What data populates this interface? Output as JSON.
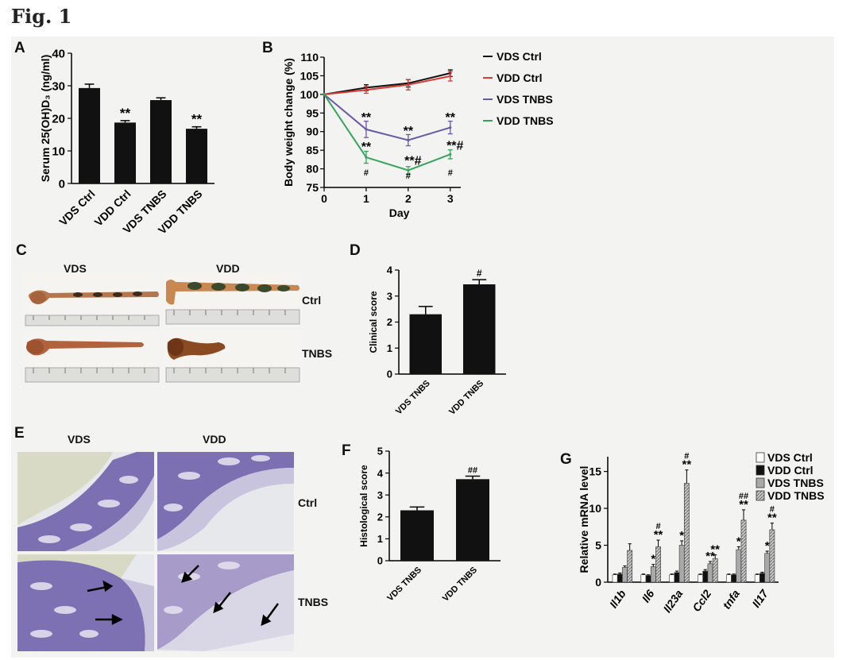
{
  "figure": {
    "title": "Fig. 1"
  },
  "panels": {
    "A": {
      "label": "A"
    },
    "B": {
      "label": "B"
    },
    "C": {
      "label": "C",
      "col_labels": [
        "VDS",
        "VDD"
      ],
      "row_labels": [
        "Ctrl",
        "TNBS"
      ]
    },
    "D": {
      "label": "D"
    },
    "E": {
      "label": "E",
      "col_labels": [
        "VDS",
        "VDD"
      ],
      "row_labels": [
        "Ctrl",
        "TNBS"
      ]
    },
    "F": {
      "label": "F"
    },
    "G": {
      "label": "G"
    }
  },
  "chart_data": [
    {
      "panel": "A",
      "type": "bar",
      "categories": [
        "VDS Ctrl",
        "VDD Ctrl",
        "VDS TNBS",
        "VDD TNBS"
      ],
      "values": [
        29.3,
        18.7,
        25.6,
        16.8
      ],
      "errors": [
        1.2,
        0.6,
        0.7,
        0.6
      ],
      "annotations": [
        "",
        "**",
        "",
        "**"
      ],
      "ylabel": "Serum 25(OH)D₃ (ng/ml)",
      "ylim": [
        0,
        40
      ],
      "yticks": [
        0,
        10,
        20,
        30,
        40
      ],
      "color": "#111111"
    },
    {
      "panel": "B",
      "type": "line",
      "x": [
        0,
        1,
        2,
        3
      ],
      "xlabel": "Day",
      "ylabel": "Body weight change (%)",
      "ylim": [
        75,
        110
      ],
      "yticks": [
        75,
        80,
        85,
        90,
        95,
        100,
        105,
        110
      ],
      "series": [
        {
          "name": "VDS Ctrl",
          "values": [
            100,
            101.8,
            103,
            105.7
          ],
          "errors": [
            0,
            0.8,
            1,
            0.9
          ],
          "color": "#111111"
        },
        {
          "name": "VDD Ctrl",
          "values": [
            100,
            101.2,
            102.6,
            104.9
          ],
          "errors": [
            0,
            0.9,
            1.4,
            1.3
          ],
          "color": "#d83a36"
        },
        {
          "name": "VDS TNBS",
          "values": [
            100,
            90.6,
            87.7,
            91.1
          ],
          "errors": [
            0,
            2.2,
            1.5,
            1.7
          ],
          "color": "#6a58a8"
        },
        {
          "name": "VDD TNBS",
          "values": [
            100,
            83.1,
            79.6,
            83.9
          ],
          "errors": [
            0,
            1.6,
            1.0,
            1.2
          ],
          "color": "#35a45c"
        }
      ],
      "annotations": [
        {
          "x": 1,
          "y": 94.2,
          "text": "**"
        },
        {
          "x": 2,
          "y": 90.6,
          "text": "**"
        },
        {
          "x": 3,
          "y": 94.2,
          "text": "**"
        },
        {
          "x": 1,
          "y": 86.3,
          "text": "**"
        },
        {
          "x": 2,
          "y": 82.6,
          "text": "**#"
        },
        {
          "x": 3,
          "y": 86.6,
          "text": "**#"
        },
        {
          "x": 1,
          "y": 79.1,
          "text": "#"
        },
        {
          "x": 2,
          "y": 78.2,
          "text": "#"
        },
        {
          "x": 3,
          "y": 79.1,
          "text": "#"
        }
      ]
    },
    {
      "panel": "D",
      "type": "bar",
      "categories": [
        "VDS TNBS",
        "VDD TNBS"
      ],
      "values": [
        2.3,
        3.45
      ],
      "errors": [
        0.3,
        0.18
      ],
      "annotations": [
        "",
        "#"
      ],
      "ylabel": "Clinical score",
      "ylim": [
        0,
        4
      ],
      "yticks": [
        0,
        1,
        2,
        3,
        4
      ],
      "color": "#111111"
    },
    {
      "panel": "F",
      "type": "bar",
      "categories": [
        "VDS TNBS",
        "VDD TNBS"
      ],
      "values": [
        2.3,
        3.72
      ],
      "errors": [
        0.15,
        0.14
      ],
      "annotations": [
        "",
        "##"
      ],
      "ylabel": "Histological score",
      "ylim": [
        0,
        5
      ],
      "yticks": [
        0,
        1,
        2,
        3,
        4,
        5
      ],
      "color": "#111111"
    },
    {
      "panel": "G",
      "type": "bar",
      "categories": [
        "Il1b",
        "Il6",
        "Il23a",
        "Ccl2",
        "tnfa",
        "Il17"
      ],
      "ylabel": "Relative mRNA level",
      "ylim": [
        0,
        17
      ],
      "yticks": [
        0,
        5,
        10,
        15
      ],
      "legend_position": "top-right",
      "series": [
        {
          "name": "VDS Ctrl",
          "values": [
            1.0,
            1.0,
            1.0,
            1.0,
            1.0,
            1.0
          ],
          "errors": [
            0.1,
            0.1,
            0.1,
            0.1,
            0.1,
            0.1
          ],
          "fill": "white"
        },
        {
          "name": "VDD Ctrl",
          "values": [
            1.1,
            0.9,
            1.3,
            1.5,
            1.0,
            1.2
          ],
          "errors": [
            0.15,
            0.1,
            0.2,
            0.2,
            0.1,
            0.15
          ],
          "fill": "black"
        },
        {
          "name": "VDS TNBS",
          "values": [
            2.0,
            2.1,
            5.0,
            2.5,
            4.4,
            3.9
          ],
          "errors": [
            0.2,
            0.3,
            0.6,
            0.3,
            0.4,
            0.3
          ],
          "fill": "gray"
        },
        {
          "name": "VDD TNBS",
          "values": [
            4.3,
            4.8,
            13.4,
            3.2,
            8.4,
            7.1
          ],
          "errors": [
            0.9,
            0.9,
            1.8,
            0.5,
            1.4,
            0.9
          ],
          "fill": "hatched"
        }
      ],
      "annotations": [
        {
          "category": 1,
          "series": 2,
          "text": "*"
        },
        {
          "category": 1,
          "series": 3,
          "text": "**"
        },
        {
          "category": 1,
          "series": 3,
          "text": "#"
        },
        {
          "category": 2,
          "series": 2,
          "text": "*"
        },
        {
          "category": 2,
          "series": 3,
          "text": "**"
        },
        {
          "category": 2,
          "series": 3,
          "text": "#"
        },
        {
          "category": 3,
          "series": 2,
          "text": "**"
        },
        {
          "category": 3,
          "series": 3,
          "text": "**"
        },
        {
          "category": 4,
          "series": 2,
          "text": "*"
        },
        {
          "category": 4,
          "series": 3,
          "text": "**"
        },
        {
          "category": 4,
          "series": 3,
          "text": "##"
        },
        {
          "category": 5,
          "series": 2,
          "text": "*"
        },
        {
          "category": 5,
          "series": 3,
          "text": "**"
        },
        {
          "category": 5,
          "series": 3,
          "text": "#"
        }
      ]
    }
  ]
}
